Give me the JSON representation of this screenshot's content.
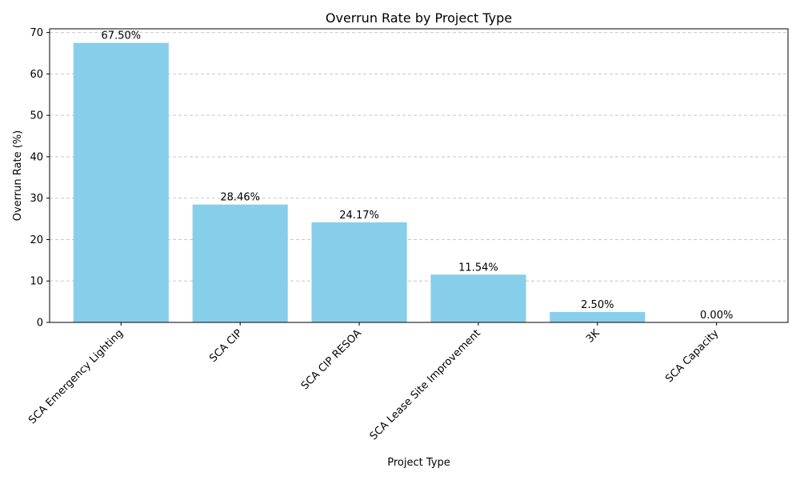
{
  "chart_data": {
    "type": "bar",
    "title": "Overrun Rate by Project Type",
    "xlabel": "Project Type",
    "ylabel": "Overrun Rate (%)",
    "categories": [
      "SCA Emergency Lighting",
      "SCA CIP",
      "SCA CIP RESOA",
      "SCA Lease Site Improvement",
      "3K",
      "SCA Capacity"
    ],
    "values": [
      67.5,
      28.46,
      24.17,
      11.54,
      2.5,
      0.0
    ],
    "data_labels": [
      "67.50%",
      "28.46%",
      "24.17%",
      "11.54%",
      "2.50%",
      "0.00%"
    ],
    "ylim": [
      0,
      70.9
    ],
    "yticks": [
      0,
      10,
      20,
      30,
      40,
      50,
      60,
      70
    ],
    "grid": "y-dashed",
    "bar_color": "#87CEEB"
  }
}
